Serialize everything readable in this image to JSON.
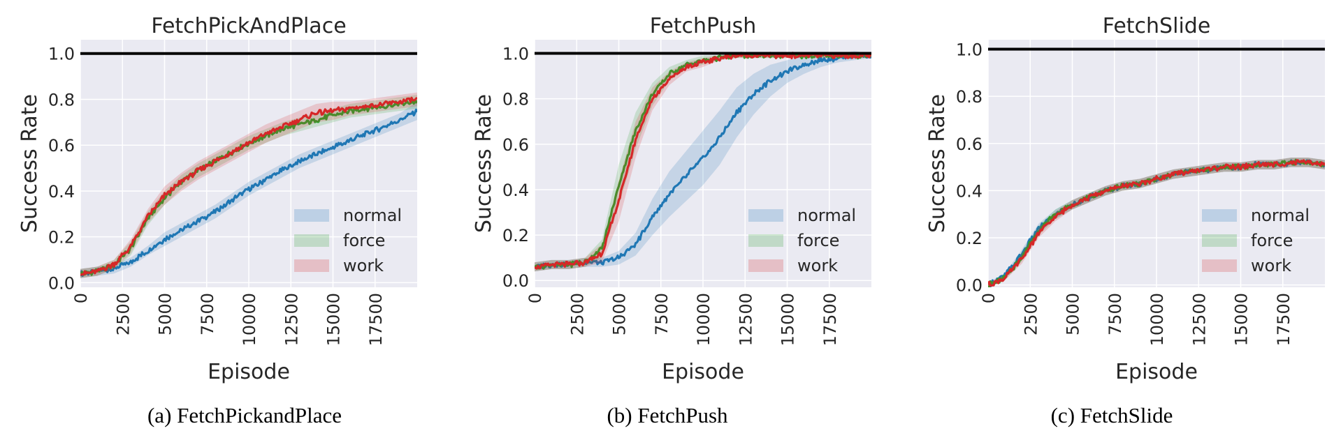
{
  "colors": {
    "normal": "#1f77b4",
    "force": "#2ca02c",
    "work": "#d62728",
    "plot_bg": "#eaeaf2",
    "grid": "#ffffff",
    "reference_line": "#000000"
  },
  "legend_labels": [
    "normal",
    "force",
    "work"
  ],
  "chart_data": [
    {
      "type": "line",
      "title": "FetchPickAndPlace",
      "caption": "(a) FetchPickandPlace",
      "xlabel": "Episode",
      "ylabel": "Success Rate",
      "xlim": [
        0,
        20000
      ],
      "ylim": [
        -0.02,
        1.06
      ],
      "xticks": [
        0,
        2500,
        5000,
        7500,
        10000,
        12500,
        15000,
        17500
      ],
      "xtick_labels": [
        "0",
        "2500",
        "5000",
        "7500",
        "10000",
        "12500",
        "15000",
        "17500"
      ],
      "yticks": [
        0.0,
        0.2,
        0.4,
        0.6,
        0.8,
        1.0
      ],
      "ytick_labels": [
        "0.0",
        "0.2",
        "0.4",
        "0.6",
        "0.8",
        "1.0"
      ],
      "reference_line_y": 1.0,
      "grid": true,
      "legend_position": "lower-right",
      "x": [
        0,
        1000,
        2000,
        3000,
        4000,
        5000,
        6000,
        7000,
        8000,
        9000,
        10000,
        11000,
        12000,
        13000,
        14000,
        15000,
        16000,
        17000,
        18000,
        19000,
        20000
      ],
      "series": [
        {
          "name": "normal",
          "values": [
            0.04,
            0.05,
            0.06,
            0.09,
            0.14,
            0.19,
            0.23,
            0.27,
            0.31,
            0.36,
            0.41,
            0.45,
            0.49,
            0.53,
            0.56,
            0.59,
            0.62,
            0.65,
            0.68,
            0.71,
            0.75
          ],
          "band": [
            0.02,
            0.02,
            0.02,
            0.02,
            0.02,
            0.03,
            0.03,
            0.03,
            0.03,
            0.03,
            0.03,
            0.03,
            0.03,
            0.03,
            0.03,
            0.03,
            0.03,
            0.03,
            0.03,
            0.03,
            0.04
          ]
        },
        {
          "name": "force",
          "values": [
            0.04,
            0.05,
            0.08,
            0.15,
            0.28,
            0.37,
            0.44,
            0.49,
            0.53,
            0.57,
            0.61,
            0.64,
            0.67,
            0.69,
            0.71,
            0.73,
            0.75,
            0.76,
            0.77,
            0.78,
            0.79
          ],
          "band": [
            0.02,
            0.02,
            0.02,
            0.03,
            0.03,
            0.03,
            0.03,
            0.03,
            0.03,
            0.03,
            0.03,
            0.03,
            0.03,
            0.03,
            0.03,
            0.03,
            0.03,
            0.03,
            0.03,
            0.03,
            0.03
          ]
        },
        {
          "name": "work",
          "values": [
            0.04,
            0.05,
            0.08,
            0.16,
            0.29,
            0.38,
            0.44,
            0.49,
            0.53,
            0.57,
            0.61,
            0.65,
            0.68,
            0.71,
            0.74,
            0.75,
            0.76,
            0.77,
            0.78,
            0.79,
            0.8
          ],
          "band": [
            0.02,
            0.02,
            0.02,
            0.03,
            0.03,
            0.04,
            0.04,
            0.04,
            0.04,
            0.04,
            0.04,
            0.04,
            0.04,
            0.04,
            0.04,
            0.04,
            0.03,
            0.03,
            0.03,
            0.03,
            0.03
          ]
        }
      ]
    },
    {
      "type": "line",
      "title": "FetchPush",
      "caption": "(b) FetchPush",
      "xlabel": "Episode",
      "ylabel": "Success Rate",
      "xlim": [
        0,
        20000
      ],
      "ylim": [
        -0.03,
        1.06
      ],
      "xticks": [
        0,
        2500,
        5000,
        7500,
        10000,
        12500,
        15000,
        17500
      ],
      "xtick_labels": [
        "0",
        "2500",
        "5000",
        "7500",
        "10000",
        "12500",
        "15000",
        "17500"
      ],
      "yticks": [
        0.0,
        0.2,
        0.4,
        0.6,
        0.8,
        1.0
      ],
      "ytick_labels": [
        "0.0",
        "0.2",
        "0.4",
        "0.6",
        "0.8",
        "1.0"
      ],
      "reference_line_y": 1.0,
      "grid": true,
      "legend_position": "lower-right",
      "x": [
        0,
        1000,
        2000,
        3000,
        4000,
        5000,
        6000,
        7000,
        8000,
        9000,
        10000,
        11000,
        12000,
        13000,
        14000,
        15000,
        16000,
        17000,
        18000,
        19000,
        20000
      ],
      "series": [
        {
          "name": "normal",
          "values": [
            0.06,
            0.07,
            0.07,
            0.08,
            0.08,
            0.1,
            0.16,
            0.28,
            0.38,
            0.46,
            0.54,
            0.63,
            0.74,
            0.82,
            0.88,
            0.92,
            0.95,
            0.97,
            0.98,
            0.99,
            0.99
          ],
          "band": [
            0.02,
            0.02,
            0.02,
            0.02,
            0.02,
            0.03,
            0.05,
            0.08,
            0.1,
            0.11,
            0.12,
            0.12,
            0.11,
            0.09,
            0.07,
            0.05,
            0.04,
            0.03,
            0.02,
            0.02,
            0.01
          ]
        },
        {
          "name": "force",
          "values": [
            0.06,
            0.07,
            0.07,
            0.08,
            0.14,
            0.42,
            0.66,
            0.82,
            0.91,
            0.95,
            0.97,
            0.98,
            0.99,
            0.99,
            0.99,
            0.99,
            0.99,
            0.99,
            0.99,
            0.99,
            0.99
          ],
          "band": [
            0.02,
            0.02,
            0.02,
            0.02,
            0.04,
            0.09,
            0.08,
            0.05,
            0.03,
            0.02,
            0.02,
            0.01,
            0.01,
            0.01,
            0.01,
            0.01,
            0.01,
            0.01,
            0.01,
            0.01,
            0.01
          ]
        },
        {
          "name": "work",
          "values": [
            0.06,
            0.07,
            0.07,
            0.08,
            0.12,
            0.35,
            0.62,
            0.8,
            0.89,
            0.94,
            0.96,
            0.98,
            0.99,
            0.99,
            0.99,
            0.99,
            0.99,
            0.99,
            0.99,
            0.99,
            0.99
          ],
          "band": [
            0.02,
            0.02,
            0.02,
            0.02,
            0.04,
            0.09,
            0.08,
            0.05,
            0.03,
            0.02,
            0.02,
            0.01,
            0.01,
            0.01,
            0.01,
            0.01,
            0.01,
            0.01,
            0.01,
            0.01,
            0.01
          ]
        }
      ]
    },
    {
      "type": "line",
      "title": "FetchSlide",
      "caption": "(c) FetchSlide",
      "xlabel": "Episode",
      "ylabel": "Success Rate",
      "xlim": [
        0,
        20000
      ],
      "ylim": [
        -0.01,
        1.04
      ],
      "xticks": [
        0,
        2500,
        5000,
        7500,
        10000,
        12500,
        15000,
        17500
      ],
      "xtick_labels": [
        "0",
        "2500",
        "5000",
        "7500",
        "10000",
        "12500",
        "15000",
        "17500"
      ],
      "yticks": [
        0.0,
        0.2,
        0.4,
        0.6,
        0.8,
        1.0
      ],
      "ytick_labels": [
        "0.0",
        "0.2",
        "0.4",
        "0.6",
        "0.8",
        "1.0"
      ],
      "reference_line_y": 1.0,
      "grid": true,
      "legend_position": "lower-right",
      "x": [
        0,
        1000,
        2000,
        3000,
        4000,
        5000,
        6000,
        7000,
        8000,
        9000,
        10000,
        11000,
        12000,
        13000,
        14000,
        15000,
        16000,
        17000,
        18000,
        19000,
        20000
      ],
      "series": [
        {
          "name": "normal",
          "values": [
            0.0,
            0.04,
            0.13,
            0.24,
            0.3,
            0.34,
            0.37,
            0.4,
            0.42,
            0.43,
            0.45,
            0.47,
            0.48,
            0.49,
            0.5,
            0.5,
            0.51,
            0.51,
            0.52,
            0.52,
            0.51
          ],
          "band": [
            0.01,
            0.01,
            0.02,
            0.02,
            0.02,
            0.02,
            0.02,
            0.02,
            0.02,
            0.02,
            0.02,
            0.02,
            0.02,
            0.02,
            0.02,
            0.02,
            0.02,
            0.02,
            0.02,
            0.02,
            0.02
          ]
        },
        {
          "name": "force",
          "values": [
            0.0,
            0.03,
            0.12,
            0.23,
            0.3,
            0.34,
            0.37,
            0.4,
            0.42,
            0.43,
            0.45,
            0.47,
            0.48,
            0.49,
            0.5,
            0.5,
            0.51,
            0.51,
            0.52,
            0.52,
            0.51
          ],
          "band": [
            0.01,
            0.01,
            0.02,
            0.02,
            0.02,
            0.02,
            0.02,
            0.02,
            0.02,
            0.02,
            0.02,
            0.02,
            0.02,
            0.02,
            0.02,
            0.02,
            0.02,
            0.02,
            0.02,
            0.02,
            0.02
          ]
        },
        {
          "name": "work",
          "values": [
            0.0,
            0.03,
            0.11,
            0.22,
            0.29,
            0.34,
            0.37,
            0.4,
            0.42,
            0.43,
            0.45,
            0.47,
            0.48,
            0.49,
            0.5,
            0.5,
            0.51,
            0.51,
            0.52,
            0.52,
            0.51
          ],
          "band": [
            0.01,
            0.01,
            0.02,
            0.02,
            0.02,
            0.02,
            0.02,
            0.02,
            0.02,
            0.02,
            0.02,
            0.02,
            0.02,
            0.02,
            0.02,
            0.02,
            0.02,
            0.02,
            0.02,
            0.02,
            0.02
          ]
        }
      ]
    }
  ]
}
